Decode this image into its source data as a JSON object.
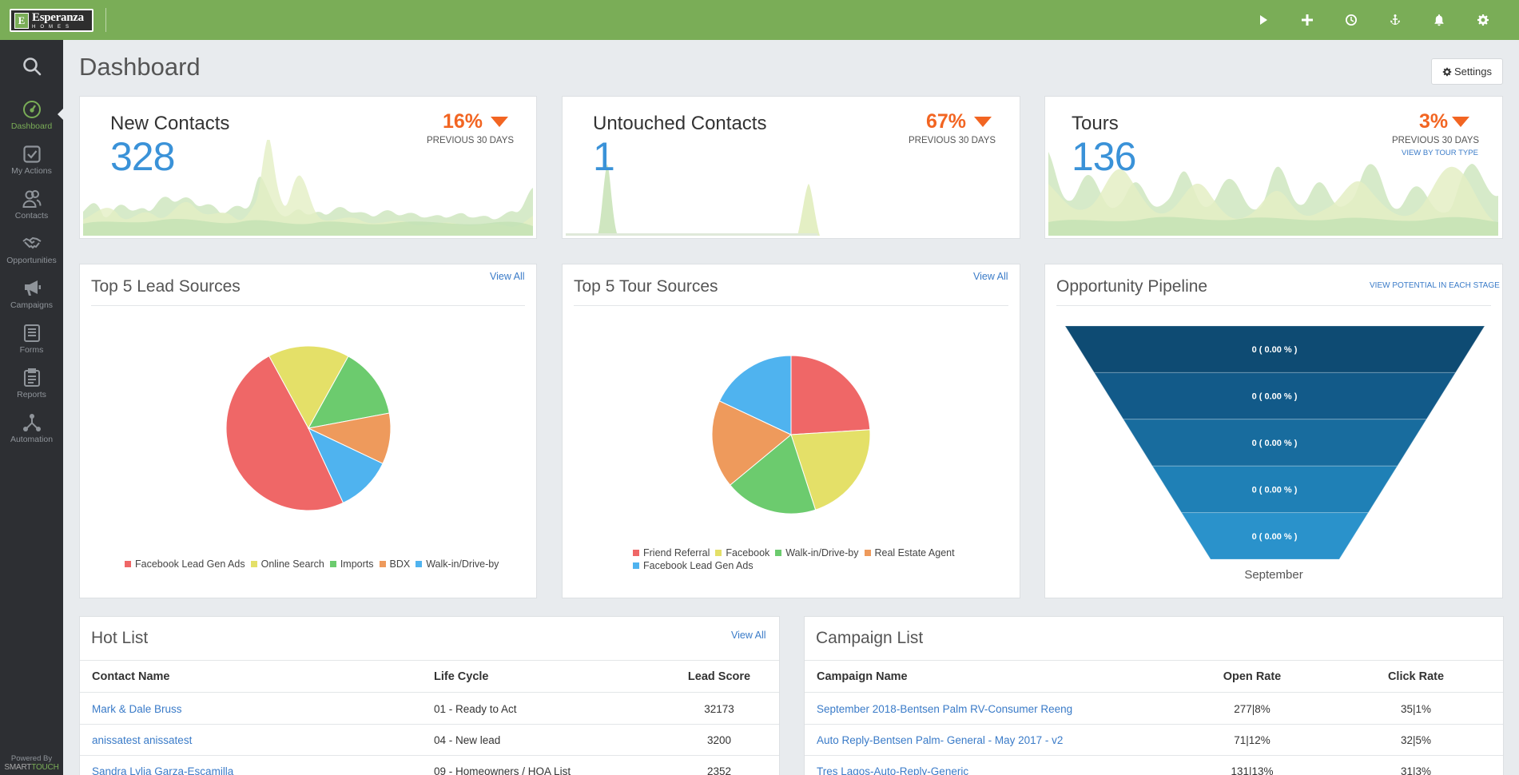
{
  "brand": {
    "name": "Esperanza",
    "sub": "HOMES",
    "mark": "E"
  },
  "sidebar": {
    "items": [
      {
        "label": "Dashboard",
        "icon": "gauge-icon"
      },
      {
        "label": "My Actions",
        "icon": "checkbox-icon"
      },
      {
        "label": "Contacts",
        "icon": "users-icon"
      },
      {
        "label": "Opportunities",
        "icon": "handshake-icon"
      },
      {
        "label": "Campaigns",
        "icon": "megaphone-icon"
      },
      {
        "label": "Forms",
        "icon": "form-icon"
      },
      {
        "label": "Reports",
        "icon": "clipboard-icon"
      },
      {
        "label": "Automation",
        "icon": "workflow-icon"
      }
    ],
    "powered_by": "Powered By",
    "powered_brand_a": "SMART",
    "powered_brand_b": "TOUCH"
  },
  "header": {
    "title": "Dashboard",
    "settings_label": "Settings"
  },
  "kpis": {
    "new_contacts": {
      "title": "New Contacts",
      "value": "328",
      "change": "16%",
      "period": "PREVIOUS 30 DAYS"
    },
    "untouched": {
      "title": "Untouched Contacts",
      "value": "1",
      "change": "67%",
      "period": "PREVIOUS 30 DAYS"
    },
    "tours": {
      "title": "Tours",
      "value": "136",
      "change": "3%",
      "period": "PREVIOUS 30 DAYS",
      "link": "VIEW BY TOUR TYPE"
    }
  },
  "lead_sources": {
    "title": "Top 5 Lead Sources",
    "view_all": "View All"
  },
  "tour_sources": {
    "title": "Top 5 Tour Sources",
    "view_all": "View All"
  },
  "pipeline": {
    "title": "Opportunity Pipeline",
    "link": "VIEW POTENTIAL IN EACH STAGE",
    "stages": [
      "0 ( 0.00 % )",
      "0 ( 0.00 % )",
      "0 ( 0.00 % )",
      "0 ( 0.00 % )",
      "0 ( 0.00 % )"
    ],
    "month": "September",
    "colors": [
      "#0e4b73",
      "#125a89",
      "#186c9e",
      "#1f80b6",
      "#2a92cb"
    ]
  },
  "hot_list": {
    "title": "Hot List",
    "view_all": "View All",
    "columns": [
      "Contact Name",
      "Life Cycle",
      "Lead Score"
    ],
    "rows": [
      [
        "Mark & Dale Bruss",
        "01 - Ready to Act",
        "32173"
      ],
      [
        "anissatest anissatest",
        "04 - New lead",
        "3200"
      ],
      [
        "Sandra Lylia Garza-Escamilla",
        "09 - Homeowners / HOA List",
        "2352"
      ]
    ]
  },
  "campaign_list": {
    "title": "Campaign List",
    "columns": [
      "Campaign Name",
      "Open Rate",
      "Click Rate"
    ],
    "rows": [
      [
        "September 2018-Bentsen Palm RV-Consumer Reeng",
        "277|8%",
        "35|1%"
      ],
      [
        "Auto Reply-Bentsen Palm- General - May 2017 - v2",
        "71|12%",
        "32|5%"
      ],
      [
        "Tres Lagos-Auto-Reply-Generic",
        "131|13%",
        "31|3%"
      ]
    ]
  },
  "chart_data": [
    {
      "type": "pie",
      "name": "Top 5 Lead Sources",
      "categories": [
        "Facebook Lead Gen Ads",
        "Online Search",
        "Imports",
        "BDX",
        "Walk-in/Drive-by"
      ],
      "values": [
        49,
        16,
        14,
        10,
        11
      ],
      "colors": [
        "#ef6767",
        "#e4e068",
        "#6ccb6e",
        "#ee9a5c",
        "#4fb3ef"
      ]
    },
    {
      "type": "pie",
      "name": "Top 5 Tour Sources",
      "categories": [
        "Friend Referral",
        "Facebook",
        "Walk-in/Drive-by",
        "Real Estate Agent",
        "Facebook Lead Gen Ads"
      ],
      "values": [
        24,
        21,
        19,
        18,
        18
      ],
      "colors": [
        "#ef6767",
        "#e4e068",
        "#6ccb6e",
        "#ee9a5c",
        "#4fb3ef"
      ]
    }
  ]
}
